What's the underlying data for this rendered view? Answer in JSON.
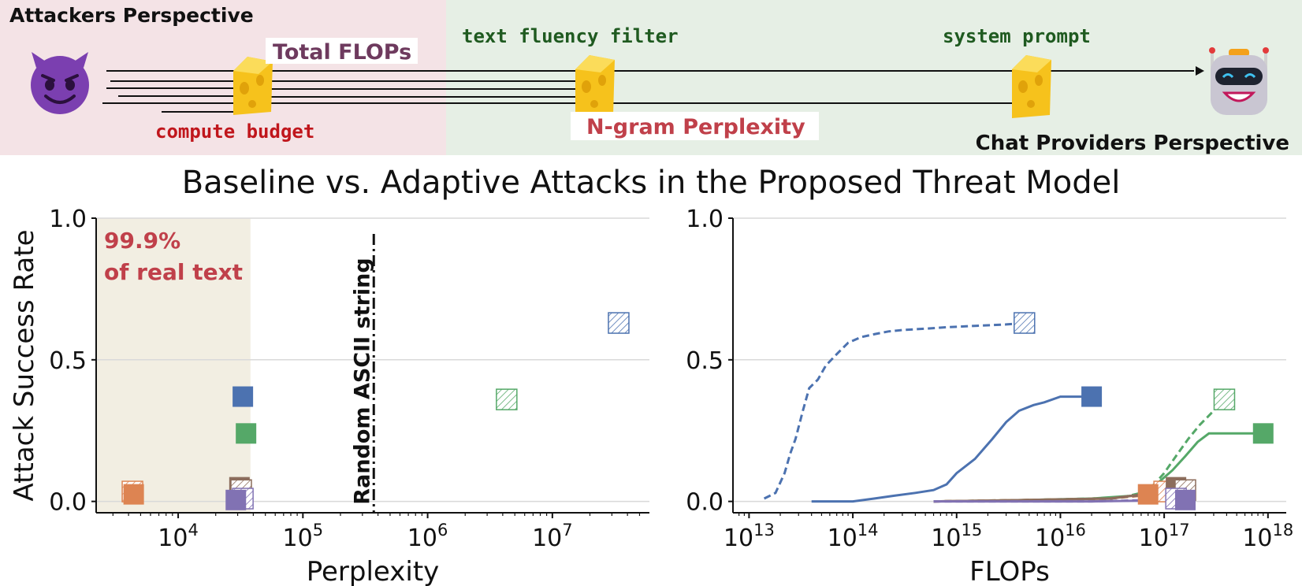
{
  "banner": {
    "attacker_title": "Attackers Perspective",
    "total_flops": "Total FLOPs",
    "compute_budget": "compute budget",
    "text_fluency_filter": "text fluency filter",
    "ngram_perplexity": "N-gram Perplexity",
    "system_prompt": "system prompt",
    "provider_title": "Chat Providers Perspective",
    "attacker_bg": "#f4e3e6",
    "provider_bg": "#e6efe5",
    "devil_icon": "smiling-devil-icon",
    "robot_icon": "robot-icon",
    "cheese_icon": "swiss-cheese-icon"
  },
  "figure_title": "Baseline vs. Adaptive Attacks in the Proposed Threat Model",
  "colors": {
    "blue": "#4c72b0",
    "orange": "#dd8452",
    "green": "#55a868",
    "brown": "#8c6d5c",
    "purple": "#8172b3",
    "red_text": "#c0404a",
    "dark_green_text": "#1f5a20",
    "shade": "#f2eee2"
  },
  "chart_data": [
    {
      "type": "scatter",
      "title": "",
      "xlabel": "Perplexity",
      "ylabel": "Attack Success Rate",
      "xscale": "log",
      "xlim": [
        2200,
        60000000
      ],
      "ylim": [
        -0.04,
        1.0
      ],
      "xticks": [
        10000,
        100000,
        1000000,
        10000000
      ],
      "xtick_labels": [
        "10^4",
        "10^5",
        "10^6",
        "10^7"
      ],
      "yticks": [
        0.0,
        0.5,
        1.0
      ],
      "ytick_labels": [
        "0.0",
        "0.5",
        "1.0"
      ],
      "grid": "horizontal",
      "shaded_region": {
        "x_from": 2200,
        "x_to": 38000,
        "label_line1": "99.9%",
        "label_line2": "of real text"
      },
      "vline": {
        "x": 370000,
        "label": "Random ASCII string"
      },
      "points": [
        {
          "x": 34000000,
          "y": 0.63,
          "color": "blue",
          "marker": "hatched-square"
        },
        {
          "x": 4300000,
          "y": 0.36,
          "color": "green",
          "marker": "hatched-square"
        },
        {
          "x": 33000,
          "y": 0.37,
          "color": "blue",
          "marker": "filled-square"
        },
        {
          "x": 35000,
          "y": 0.24,
          "color": "green",
          "marker": "filled-square"
        },
        {
          "x": 4300,
          "y": 0.035,
          "color": "orange",
          "marker": "hatched-square"
        },
        {
          "x": 4400,
          "y": 0.025,
          "color": "orange",
          "marker": "filled-square"
        },
        {
          "x": 31000,
          "y": 0.05,
          "color": "brown",
          "marker": "filled-square"
        },
        {
          "x": 32000,
          "y": 0.04,
          "color": "brown",
          "marker": "hatched-square"
        },
        {
          "x": 33000,
          "y": 0.01,
          "color": "purple",
          "marker": "hatched-square"
        },
        {
          "x": 29000,
          "y": 0.005,
          "color": "purple",
          "marker": "filled-square"
        }
      ]
    },
    {
      "type": "line",
      "title": "",
      "xlabel": "FLOPs",
      "ylabel": "",
      "xscale": "log",
      "xlim": [
        7000000000000.0,
        1.5e+18
      ],
      "ylim": [
        -0.04,
        1.0
      ],
      "xticks": [
        10000000000000.0,
        100000000000000.0,
        1000000000000000.0,
        1e+16,
        1e+17,
        1e+18
      ],
      "xtick_labels": [
        "10^13",
        "10^14",
        "10^15",
        "10^16",
        "10^17",
        "10^18"
      ],
      "yticks": [
        0.0,
        0.5,
        1.0
      ],
      "ytick_labels": [
        "0.0",
        "0.5",
        "1.0"
      ],
      "grid": "horizontal",
      "series": [
        {
          "color": "blue",
          "style": "dashed",
          "end_marker": "hatched-square",
          "x": [
            14000000000000.0,
            18000000000000.0,
            22000000000000.0,
            25000000000000.0,
            28000000000000.0,
            33000000000000.0,
            38000000000000.0,
            46000000000000.0,
            55000000000000.0,
            70000000000000.0,
            90000000000000.0,
            120000000000000.0,
            160000000000000.0,
            220000000000000.0,
            300000000000000.0,
            500000000000000.0,
            800000000000000.0,
            1500000000000000.0,
            3000000000000000.0,
            4500000000000000.0
          ],
          "y": [
            0.01,
            0.03,
            0.1,
            0.17,
            0.22,
            0.32,
            0.4,
            0.43,
            0.48,
            0.52,
            0.56,
            0.58,
            0.59,
            0.6,
            0.605,
            0.61,
            0.615,
            0.62,
            0.625,
            0.63
          ]
        },
        {
          "color": "blue",
          "style": "solid",
          "end_marker": "filled-square",
          "x": [
            40000000000000.0,
            100000000000000.0,
            160000000000000.0,
            250000000000000.0,
            400000000000000.0,
            600000000000000.0,
            800000000000000.0,
            1000000000000000.0,
            1500000000000000.0,
            2200000000000000.0,
            3000000000000000.0,
            4000000000000000.0,
            5500000000000000.0,
            7000000000000000.0,
            1e+16,
            2e+16
          ],
          "y": [
            0.0,
            0.0,
            0.01,
            0.02,
            0.03,
            0.04,
            0.06,
            0.1,
            0.15,
            0.22,
            0.28,
            0.32,
            0.34,
            0.35,
            0.37,
            0.37
          ]
        },
        {
          "color": "green",
          "style": "dashed",
          "end_marker": "hatched-square",
          "x": [
            600000000000000.0,
            5000000000000000.0,
            2e+16,
            4e+16,
            6e+16,
            8e+16,
            1e+17,
            1.3e+17,
            1.7e+17,
            2.2e+17,
            3e+17,
            3.8e+17
          ],
          "y": [
            0.0,
            0.005,
            0.01,
            0.015,
            0.03,
            0.06,
            0.1,
            0.16,
            0.22,
            0.27,
            0.32,
            0.36
          ]
        },
        {
          "color": "green",
          "style": "solid",
          "end_marker": "filled-square",
          "x": [
            600000000000000.0,
            5000000000000000.0,
            2e+16,
            5e+16,
            7e+16,
            9e+16,
            1.2e+17,
            1.6e+17,
            2.1e+17,
            2.7e+17,
            4e+17,
            6e+17,
            9e+17
          ],
          "y": [
            0.0,
            0.005,
            0.01,
            0.02,
            0.04,
            0.07,
            0.11,
            0.16,
            0.21,
            0.24,
            0.24,
            0.24,
            0.24
          ]
        },
        {
          "color": "orange",
          "style": "dashed",
          "end_marker": "hatched-square",
          "x": [
            600000000000000.0,
            5000000000000000.0,
            3e+16,
            6e+16,
            8e+16,
            1e+17
          ],
          "y": [
            0.0,
            0.005,
            0.01,
            0.02,
            0.03,
            0.035
          ]
        },
        {
          "color": "orange",
          "style": "solid",
          "end_marker": "filled-square",
          "x": [
            600000000000000.0,
            5000000000000000.0,
            3e+16,
            5e+16,
            7e+16
          ],
          "y": [
            0.0,
            0.005,
            0.01,
            0.02,
            0.025
          ]
        },
        {
          "color": "brown",
          "style": "solid",
          "end_marker": "filled-square",
          "x": [
            600000000000000.0,
            5000000000000000.0,
            3e+16,
            8e+16,
            1.3e+17
          ],
          "y": [
            0.0,
            0.005,
            0.01,
            0.03,
            0.05
          ]
        },
        {
          "color": "brown",
          "style": "dashed",
          "end_marker": "hatched-square",
          "x": [
            600000000000000.0,
            5000000000000000.0,
            3e+16,
            1e+17,
            1.6e+17
          ],
          "y": [
            0.0,
            0.005,
            0.01,
            0.03,
            0.04
          ]
        },
        {
          "color": "purple",
          "style": "dashed",
          "end_marker": "hatched-square",
          "x": [
            600000000000000.0,
            2e+16,
            8e+16,
            1.3e+17
          ],
          "y": [
            0.0,
            0.0,
            0.005,
            0.01
          ]
        },
        {
          "color": "purple",
          "style": "solid",
          "end_marker": "filled-square",
          "x": [
            600000000000000.0,
            2e+16,
            8e+16,
            1.6e+17
          ],
          "y": [
            0.0,
            0.0,
            0.003,
            0.005
          ]
        }
      ]
    }
  ]
}
